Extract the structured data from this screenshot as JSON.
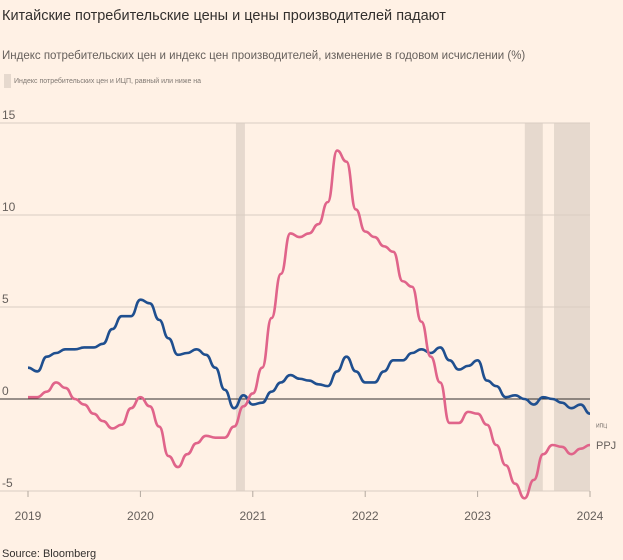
{
  "title": "Китайские потребительские цены и цены производителей падают",
  "subtitle": "Индекс потребительских цен и индекс цен производителей, изменение в годовом исчислении (%)",
  "legend": "Индекс потребительских цен и ИЦП, равный или ниже на",
  "source": "Source: Bloomberg",
  "chart_data": {
    "type": "line",
    "title": "Китайские потребительские цены и цены производителей падают",
    "ylim": [
      -5,
      15
    ],
    "yticks": [
      "15",
      "10",
      "5",
      "0",
      "-5"
    ],
    "xlim": [
      2019,
      2024
    ],
    "xticks": [
      "2019",
      "2020",
      "2021",
      "2022",
      "2023",
      "2024"
    ],
    "shaded_periods": [
      [
        2020.85,
        2020.93
      ],
      [
        2023.42,
        2023.58
      ],
      [
        2023.68,
        2024.0
      ]
    ],
    "series": [
      {
        "name": "ИПЦ",
        "color": "#1f4f8f",
        "start": 2019,
        "step_months": 1,
        "values": [
          1.7,
          1.5,
          2.3,
          2.5,
          2.7,
          2.7,
          2.8,
          2.8,
          3.0,
          3.8,
          4.5,
          4.5,
          5.4,
          5.2,
          4.3,
          3.3,
          2.4,
          2.5,
          2.7,
          2.4,
          1.7,
          0.5,
          -0.5,
          0.2,
          -0.3,
          -0.2,
          0.4,
          0.9,
          1.3,
          1.1,
          1.0,
          0.8,
          0.7,
          1.5,
          2.3,
          1.5,
          0.9,
          0.9,
          1.5,
          2.1,
          2.1,
          2.5,
          2.7,
          2.5,
          2.8,
          2.1,
          1.6,
          1.8,
          2.1,
          1.0,
          0.7,
          0.1,
          0.2,
          0.0,
          -0.3,
          0.1,
          0.0,
          -0.2,
          -0.5,
          -0.3,
          -0.8
        ]
      },
      {
        "name": "PPI",
        "color": "#e0648a",
        "start": 2019,
        "step_months": 1,
        "values": [
          0.1,
          0.1,
          0.4,
          0.9,
          0.6,
          0.0,
          -0.3,
          -0.8,
          -1.2,
          -1.6,
          -1.4,
          -0.5,
          0.1,
          -0.4,
          -1.5,
          -3.1,
          -3.7,
          -3.0,
          -2.4,
          -2.0,
          -2.1,
          -2.1,
          -1.5,
          -0.4,
          0.3,
          1.7,
          4.4,
          6.8,
          9.0,
          8.8,
          9.0,
          9.5,
          10.7,
          13.5,
          12.9,
          10.3,
          9.1,
          8.8,
          8.3,
          8.0,
          6.4,
          6.1,
          4.2,
          2.3,
          0.9,
          -1.3,
          -1.3,
          -0.7,
          -0.8,
          -1.4,
          -2.5,
          -3.6,
          -4.6,
          -5.4,
          -4.4,
          -3.0,
          -2.5,
          -2.6,
          -3.0,
          -2.7,
          -2.5
        ]
      }
    ],
    "end_labels": [
      "ИПЦ",
      "PPJ"
    ]
  }
}
